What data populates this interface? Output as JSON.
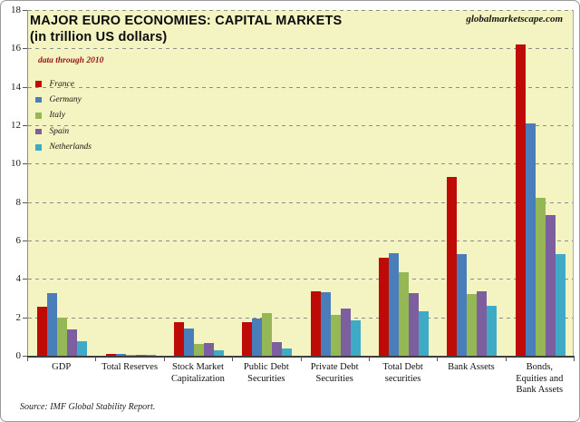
{
  "header": {
    "title_line1": "MAJOR EURO ECONOMIES: CAPITAL MARKETS",
    "title_line2": "(in trillion US dollars)",
    "watermark": "globalmarketscape.com",
    "data_note": "data through  2010"
  },
  "source_line": "Source: IMF Global Stability Report.",
  "colors": {
    "plot_background": "#f4f4c3",
    "gridline": "#8c8c8c",
    "axis": "#3d3d3d",
    "data_note_red": "#971313",
    "france": "#bf0b08",
    "germany": "#4a7ebb",
    "italy": "#96b755",
    "spain": "#7d5fa0",
    "netherlands": "#3faac6"
  },
  "chart_data": {
    "type": "bar",
    "title": "MAJOR EURO ECONOMIES: CAPITAL MARKETS (in trillion US dollars)",
    "subtitle": "data through 2010",
    "xlabel": "",
    "ylabel": "trillion US dollars",
    "ylim": [
      0,
      18
    ],
    "ytick_step": 2,
    "grid": "horizontal-dashed",
    "legend_position": "upper-left-inside",
    "categories": [
      "GDP",
      "Total Reserves",
      "Stock Market Capitalization",
      "Public Debt Securities",
      "Private Debt Securities",
      "Total Debt securities",
      "Bank Assets",
      "Bonds, Equities and Bank Assets"
    ],
    "series": [
      {
        "name": "France",
        "color": "#bf0b08",
        "values": [
          2.55,
          0.08,
          1.75,
          1.75,
          3.35,
          5.1,
          9.3,
          16.2
        ]
      },
      {
        "name": "Germany",
        "color": "#4a7ebb",
        "values": [
          3.25,
          0.08,
          1.4,
          1.95,
          3.3,
          5.35,
          5.3,
          12.1
        ]
      },
      {
        "name": "Italy",
        "color": "#96b755",
        "values": [
          2.0,
          0.06,
          0.6,
          2.2,
          2.15,
          4.35,
          3.2,
          8.2
        ]
      },
      {
        "name": "Spain",
        "color": "#7d5fa0",
        "values": [
          1.35,
          0.04,
          0.65,
          0.7,
          2.45,
          3.25,
          3.35,
          7.3
        ]
      },
      {
        "name": "Netherlands",
        "color": "#3faac6",
        "values": [
          0.75,
          0.04,
          0.3,
          0.4,
          1.85,
          2.3,
          2.6,
          5.3
        ]
      }
    ]
  }
}
